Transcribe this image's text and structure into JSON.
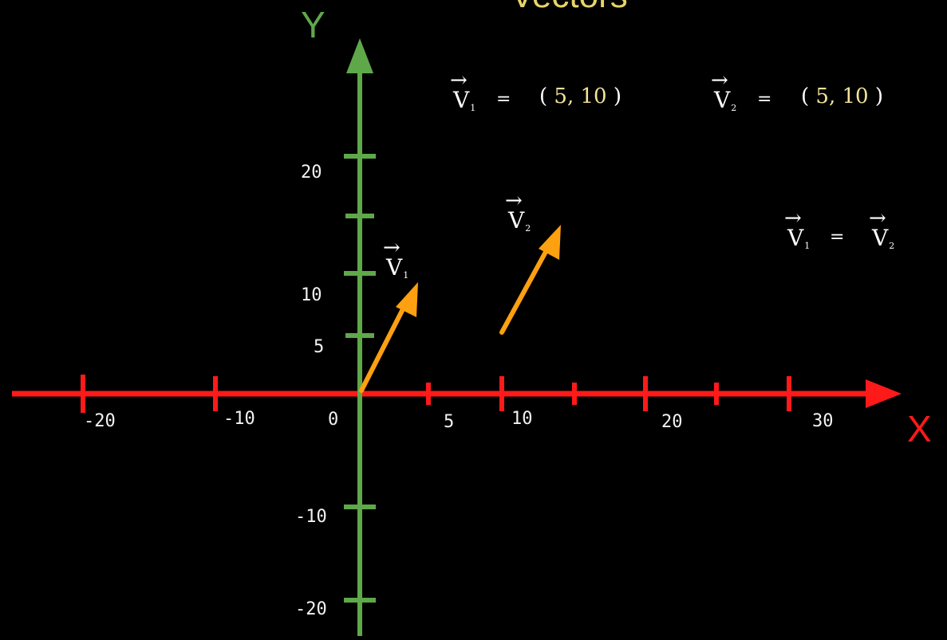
{
  "title": "Vectors",
  "axes": {
    "y_name": "Y",
    "x_name": "X",
    "x_ticks": [
      "-20",
      "-10",
      "0",
      "5",
      "10",
      "20",
      "30"
    ],
    "y_ticks": [
      "20",
      "10",
      "5",
      "-10",
      "-20"
    ]
  },
  "vectors": {
    "v1": {
      "letter": "V",
      "sub": "1"
    },
    "v2": {
      "letter": "V",
      "sub": "2"
    }
  },
  "equations": {
    "v1_value": {
      "eq": "=",
      "open": "(",
      "value": "5, 10",
      "close": ")"
    },
    "v2_value": {
      "eq": "=",
      "open": "(",
      "value": "5, 10",
      "close": ")"
    },
    "equality": "="
  },
  "colors": {
    "x_axis": "#ff1a1a",
    "y_axis": "#5fa84a",
    "vector": "#ffa010",
    "title": "#e8d36a"
  }
}
